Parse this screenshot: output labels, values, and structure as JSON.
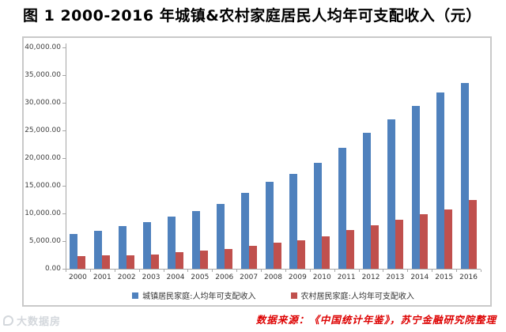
{
  "title": "图 1  2000-2016 年城镇&农村家庭居民人均年可支配收入（元）",
  "source_note": "数据来源：《中国统计年鉴》，苏宁金融研究院整理",
  "watermark": "大数据房",
  "colors": {
    "urban_bar": "#4f81bd",
    "rural_bar": "#c0504d",
    "axis": "#a6a6a6",
    "frame_border": "#c9c9c9",
    "source_text": "#dd0000"
  },
  "chart_data": {
    "type": "bar",
    "title": "图 1  2000-2016 年城镇&农村家庭居民人均年可支配收入（元）",
    "xlabel": "",
    "ylabel": "",
    "categories": [
      "2000",
      "2001",
      "2002",
      "2003",
      "2004",
      "2005",
      "2006",
      "2007",
      "2008",
      "2009",
      "2010",
      "2011",
      "2012",
      "2013",
      "2014",
      "2015",
      "2016"
    ],
    "series": [
      {
        "name": "城镇居民家庭:人均年可支配收入",
        "color": "#4f81bd",
        "values": [
          6280.0,
          6859.6,
          7702.8,
          8472.2,
          9421.6,
          10493.0,
          11759.5,
          13785.8,
          15780.8,
          17174.7,
          19109.4,
          21809.8,
          24564.7,
          26955.1,
          29381.0,
          31790.3,
          33616.2
        ]
      },
      {
        "name": "农村居民家庭:人均年可支配收入",
        "color": "#c0504d",
        "values": [
          2253.4,
          2366.4,
          2475.6,
          2622.2,
          2936.4,
          3254.9,
          3587.0,
          4140.4,
          4760.6,
          5153.2,
          5919.0,
          6977.3,
          7916.6,
          8895.9,
          9892.0,
          10772.0,
          12363.4
        ]
      }
    ],
    "ylim": [
      0,
      40000
    ],
    "ytick_step": 5000,
    "ytick_labels": [
      "0.00",
      "5,000.00",
      "10,000.00",
      "15,000.00",
      "20,000.00",
      "25,000.00",
      "30,000.00",
      "35,000.00",
      "40,000.00"
    ],
    "grid": false,
    "legend_position": "bottom"
  }
}
